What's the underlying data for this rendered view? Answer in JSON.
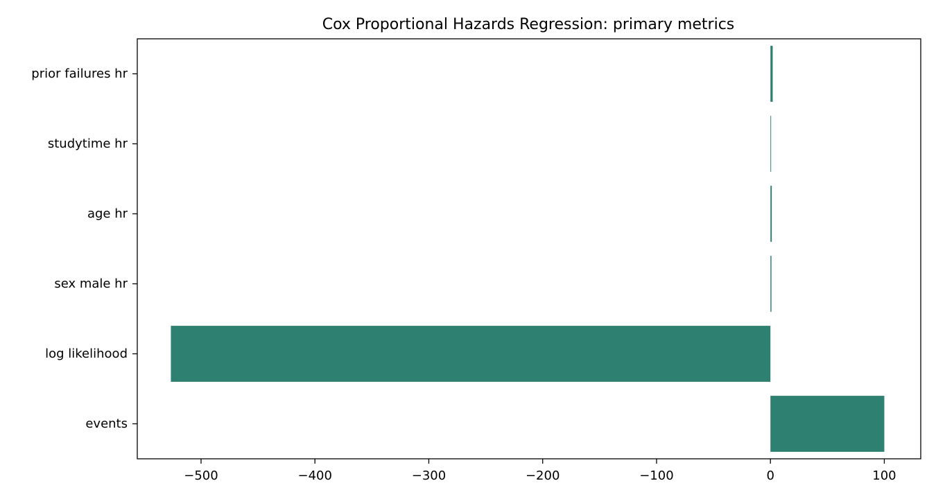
{
  "chart_data": {
    "type": "bar",
    "orientation": "horizontal",
    "title": "Cox Proportional Hazards Regression: primary metrics",
    "xlabel": "",
    "ylabel": "",
    "categories": [
      "events",
      "log likelihood",
      "sex male hr",
      "age hr",
      "studytime hr",
      "prior failures hr"
    ],
    "values": [
      100,
      -526.5,
      0.9,
      1.2,
      0.5,
      2.0
    ],
    "xlim": [
      -556,
      132
    ],
    "xticks": [
      -500,
      -400,
      -300,
      -200,
      -100,
      0,
      100
    ],
    "xtick_labels": [
      "−500",
      "−400",
      "−300",
      "−200",
      "−100",
      "0",
      "100"
    ],
    "grid": false,
    "legend": "none",
    "bar_color": "#2e8070"
  }
}
